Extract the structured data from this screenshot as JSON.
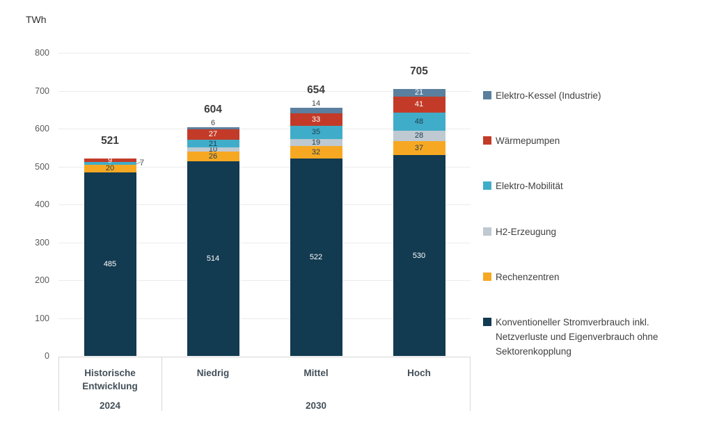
{
  "chart_data": {
    "type": "stacked-bar",
    "unit_label": "TWh",
    "ylim": [
      0,
      800
    ],
    "ytick_step": 100,
    "grid": true,
    "legend_position": "right",
    "categories": [
      "Historische Entwicklung",
      "Niedrig",
      "Mittel",
      "Hoch"
    ],
    "category_groups": [
      {
        "label": "2024",
        "from": 0,
        "to": 0
      },
      {
        "label": "2030",
        "from": 1,
        "to": 3
      }
    ],
    "totals": [
      521,
      604,
      654,
      705
    ],
    "series": [
      {
        "name": "Konventioneller Stromverbrauch inkl. Netzverluste und Eigenverbrauch ohne Sektorenkopplung",
        "color": "#123a50",
        "label_color": "#ffffff",
        "values": [
          485,
          514,
          522,
          530
        ],
        "label_layout": [
          "inside",
          "inside",
          "inside",
          "inside"
        ]
      },
      {
        "name": "Rechenzentren",
        "color": "#f7a823",
        "label_color": "#1e3c4d",
        "values": [
          20,
          26,
          32,
          37
        ],
        "label_layout": [
          "inside",
          "inside",
          "inside",
          "inside"
        ]
      },
      {
        "name": "H2-Erzeugung",
        "color": "#bec9d2",
        "label_color": "#1e3c4d",
        "values": [
          0,
          10,
          19,
          28
        ],
        "label_layout": [
          "none",
          "inside",
          "inside",
          "inside"
        ]
      },
      {
        "name": "Elektro-Mobilität",
        "color": "#3fadc9",
        "label_color": "#1e3c4d",
        "values": [
          7,
          21,
          35,
          48
        ],
        "label_layout": [
          "callout",
          "inside",
          "inside",
          "inside"
        ]
      },
      {
        "name": "Wärmepumpen",
        "color": "#c33b28",
        "label_color": "#ffffff",
        "values": [
          9,
          27,
          33,
          41
        ],
        "label_layout": [
          "inside",
          "inside",
          "inside",
          "inside"
        ]
      },
      {
        "name": "Elektro-Kessel (Industrie)",
        "color": "#5b7f9e",
        "label_color": "#ffffff",
        "values": [
          0,
          6,
          14,
          21
        ],
        "label_layout": [
          "none",
          "above",
          "above",
          "inside"
        ]
      }
    ]
  }
}
